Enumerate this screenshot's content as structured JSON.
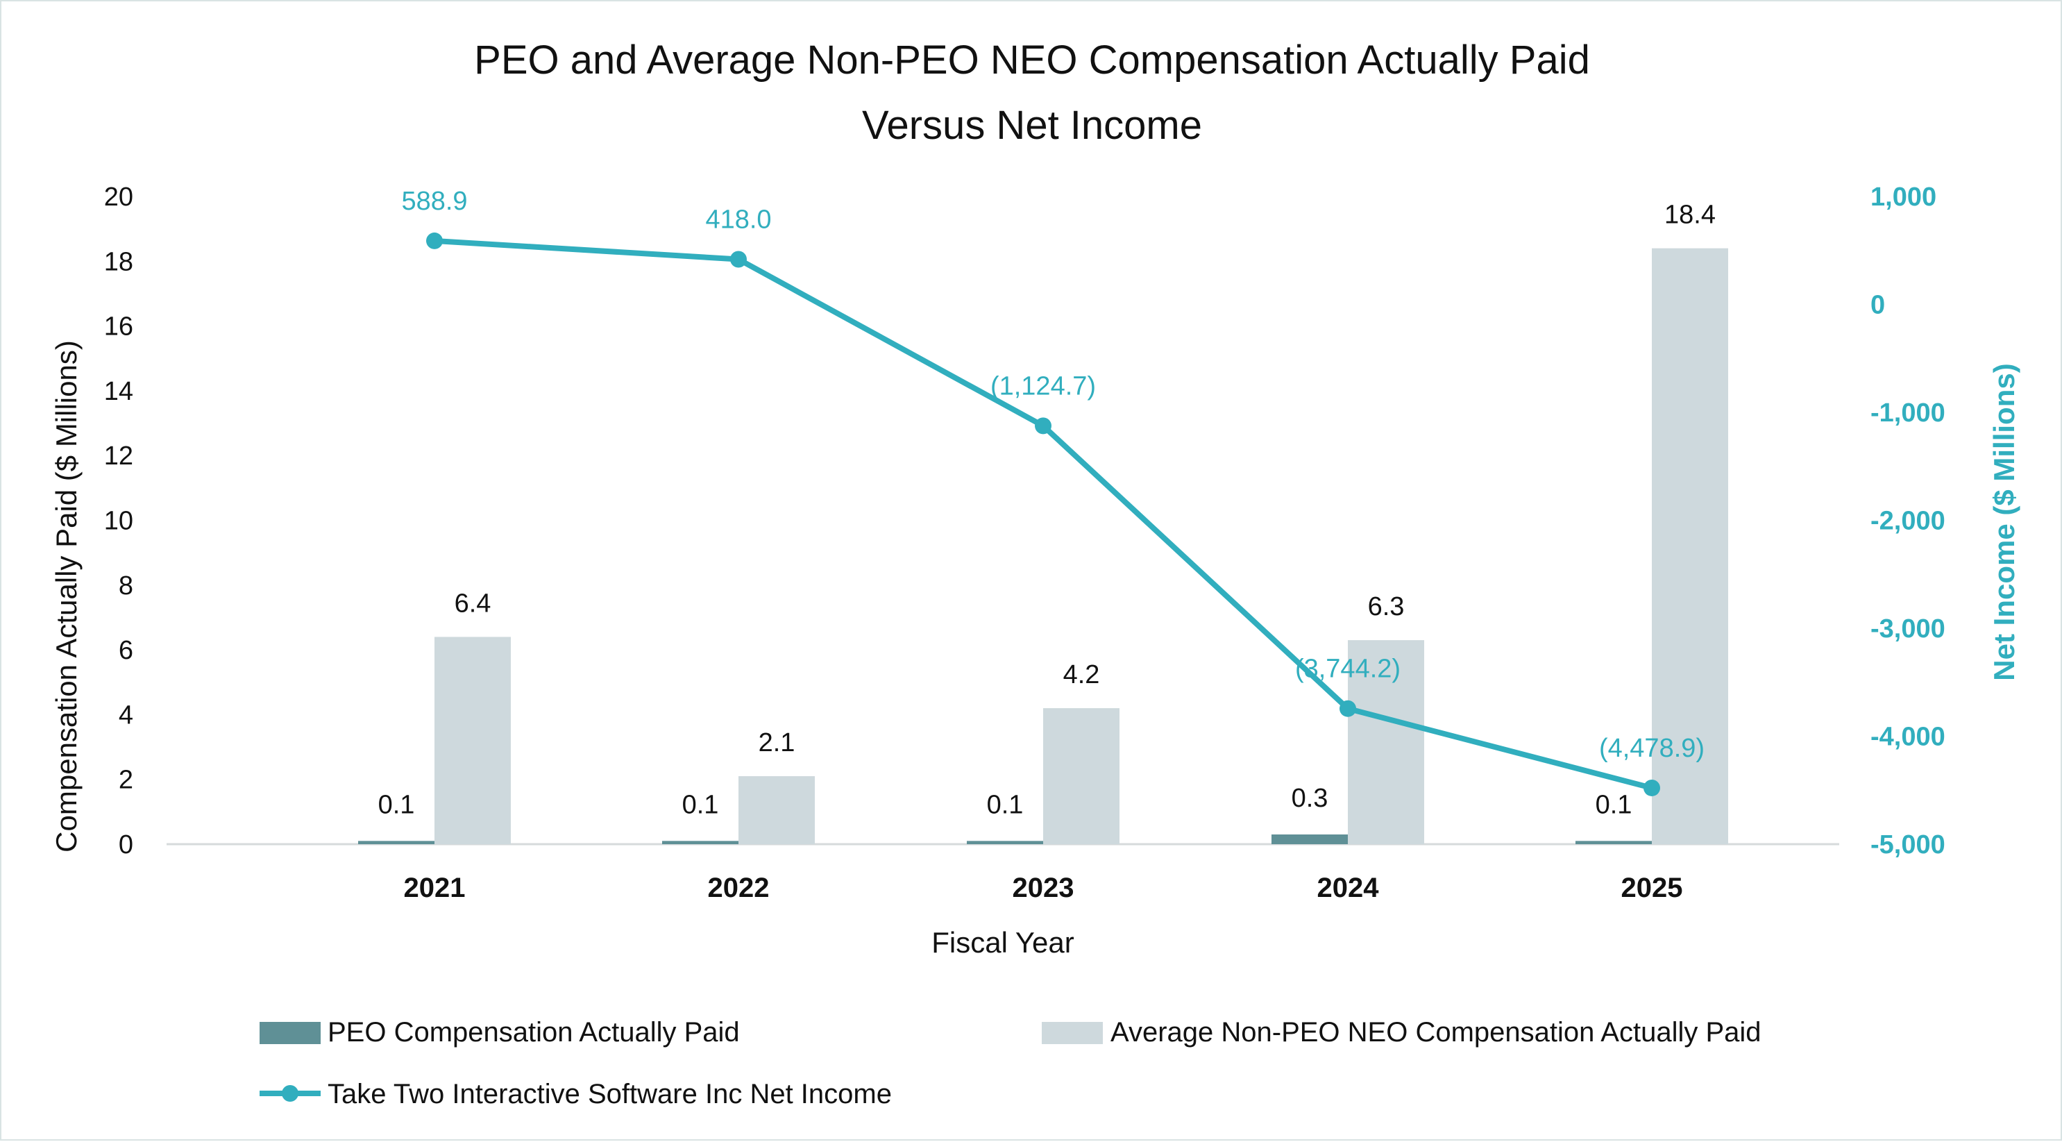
{
  "colors": {
    "peo": "#5f9096",
    "neo": "#ced9dd",
    "line": "#31aebe",
    "grid": "#d6dadb"
  },
  "chart_data": {
    "type": "bar",
    "title": [
      "PEO and Average Non-PEO NEO Compensation Actually Paid",
      "Versus Net Income"
    ],
    "xlabel": "Fiscal Year",
    "ylabel": "Compensation Actually Paid ($ Millions)",
    "y2label": "Net Income ($ Millions)",
    "categories": [
      "2021",
      "2022",
      "2023",
      "2024",
      "2025"
    ],
    "ylim": [
      0,
      20
    ],
    "yticks": [
      0,
      2,
      4,
      6,
      8,
      10,
      12,
      14,
      16,
      18,
      20
    ],
    "y2lim": [
      -5000,
      1000
    ],
    "y2ticks": [
      -5000,
      -4000,
      -3000,
      -2000,
      -1000,
      0,
      1000
    ],
    "y2ticklabels": [
      "-5,000",
      "-4,000",
      "-3,000",
      "-2,000",
      "-1,000",
      "0",
      "1,000"
    ],
    "series": [
      {
        "name": "PEO Compensation Actually Paid",
        "type": "bar",
        "axis": "left",
        "values": [
          0.1,
          0.1,
          0.1,
          0.3,
          0.1
        ],
        "labels": [
          "0.1",
          "0.1",
          "0.1",
          "0.3",
          "0.1"
        ]
      },
      {
        "name": "Average Non-PEO NEO Compensation Actually Paid",
        "type": "bar",
        "axis": "left",
        "values": [
          6.4,
          2.1,
          4.2,
          6.3,
          18.4
        ],
        "labels": [
          "6.4",
          "2.1",
          "4.2",
          "6.3",
          "18.4"
        ]
      },
      {
        "name": "Take Two Interactive Software Inc Net Income",
        "type": "line",
        "axis": "right",
        "values": [
          588.9,
          418.0,
          -1124.7,
          -3744.2,
          -4478.9
        ],
        "labels": [
          "588.9",
          "418.0",
          "(1,124.7)",
          "(3,744.2)",
          "(4,478.9)"
        ]
      }
    ],
    "legend": "bottom",
    "grid": false
  }
}
